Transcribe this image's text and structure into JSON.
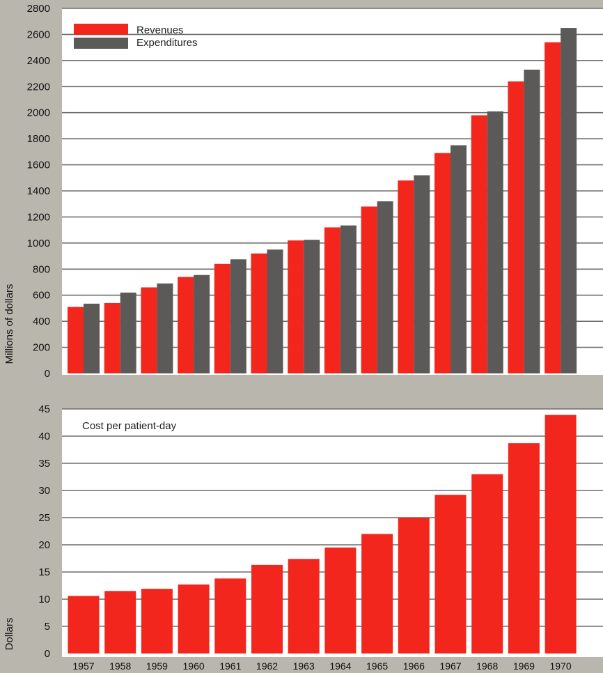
{
  "colors": {
    "revenue": "#f2261c",
    "expenditure": "#5c5a58",
    "gridline": "#6e6d6a",
    "panel": "#ffffff",
    "background": "#b9b6ad"
  },
  "chart_data": [
    {
      "type": "bar",
      "ylabel": "Millions of dollars",
      "ylim": [
        0,
        2800
      ],
      "yticks": [
        0,
        200,
        400,
        600,
        800,
        1000,
        1200,
        1400,
        1600,
        1800,
        2000,
        2200,
        2400,
        2600,
        2800
      ],
      "categories": [
        "1957",
        "1958",
        "1959",
        "1960",
        "1961",
        "1962",
        "1963",
        "1964",
        "1965",
        "1966",
        "1967",
        "1968",
        "1969",
        "1970"
      ],
      "legend_position": "top-left",
      "grid": true,
      "series": [
        {
          "name": "Revenues",
          "color": "#f2261c",
          "values": [
            510,
            540,
            660,
            740,
            840,
            920,
            1020,
            1120,
            1280,
            1480,
            1690,
            1980,
            2240,
            2540
          ]
        },
        {
          "name": "Expenditures",
          "color": "#5c5a58",
          "values": [
            535,
            620,
            690,
            755,
            875,
            950,
            1025,
            1135,
            1320,
            1520,
            1750,
            2010,
            2330,
            2650
          ]
        }
      ]
    },
    {
      "type": "bar",
      "title": "Cost per patient-day",
      "ylabel": "Dollars",
      "ylim": [
        0,
        45
      ],
      "yticks": [
        0,
        5,
        10,
        15,
        20,
        25,
        30,
        35,
        40,
        45
      ],
      "categories": [
        "1957",
        "1958",
        "1959",
        "1960",
        "1961",
        "1962",
        "1963",
        "1964",
        "1965",
        "1966",
        "1967",
        "1968",
        "1969",
        "1970"
      ],
      "grid": true,
      "series": [
        {
          "color": "#f2261c",
          "values": [
            10.6,
            11.5,
            11.9,
            12.7,
            13.8,
            16.3,
            17.4,
            19.5,
            22.0,
            25.0,
            29.2,
            33.0,
            38.7,
            43.9
          ]
        }
      ]
    }
  ]
}
